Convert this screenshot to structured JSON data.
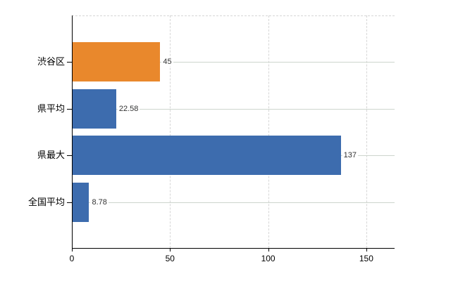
{
  "colors": {
    "background": "#ffffff",
    "bar_blue": "#3D6CAE",
    "bar_orange": "#E9882C",
    "axis": "#000000",
    "grid_dashed": "#d6d6d6",
    "grid_solid": "#cdd5cd",
    "value_label": "#333333",
    "category_label": "#000000"
  },
  "chart_data": {
    "type": "bar",
    "orientation": "horizontal",
    "title": "",
    "xlabel": "",
    "ylabel": "",
    "categories": [
      "渋谷区",
      "県平均",
      "県最大",
      "全国平均"
    ],
    "values": [
      45,
      22.58,
      137,
      8.78
    ],
    "value_labels": [
      "45",
      "22.58",
      "137",
      "8.78"
    ],
    "bar_colors": [
      "#E9882C",
      "#3D6CAE",
      "#3D6CAE",
      "#3D6CAE"
    ],
    "x_ticks": [
      0,
      50,
      100,
      150
    ],
    "x_tick_labels": [
      "0",
      "50",
      "100",
      "150"
    ],
    "xlim": [
      0,
      164.4
    ],
    "grid": true,
    "legend": false
  }
}
